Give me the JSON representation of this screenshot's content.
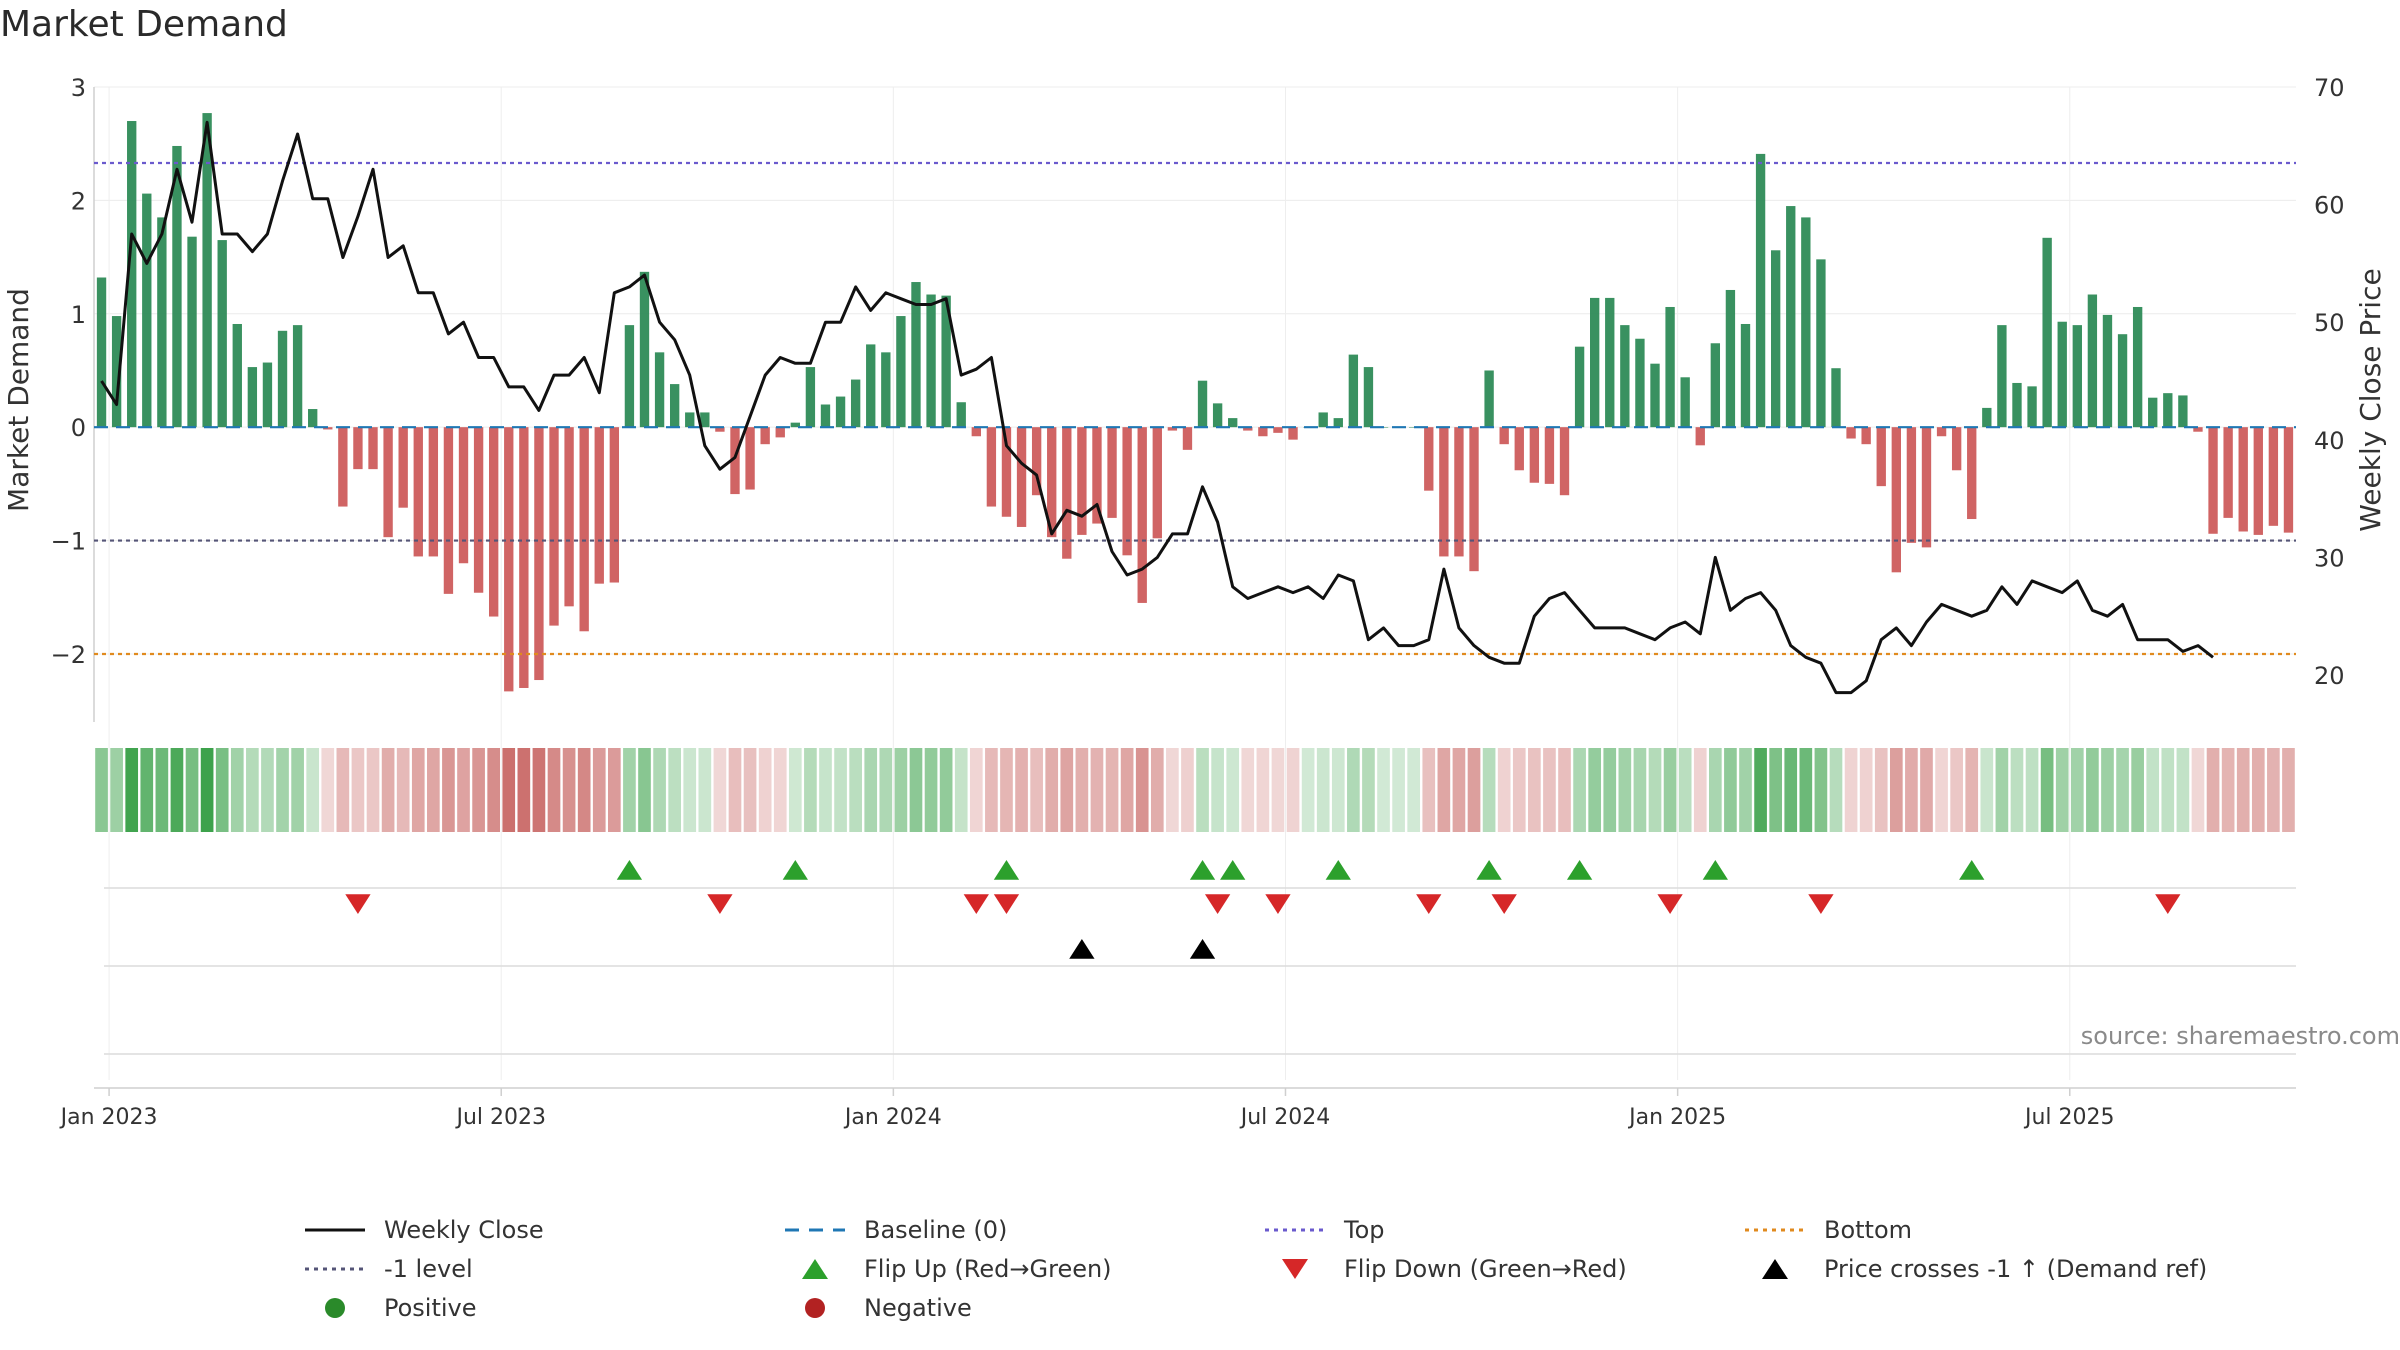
{
  "title": "Market Demand",
  "source": "source: sharemaestro.com",
  "chart_data": {
    "type": "bar+line",
    "title": "Market Demand",
    "ylabel_left": "Market Demand",
    "ylabel_right": "Weekly Close Price",
    "left_ylim": [
      -2.6,
      3.0
    ],
    "right_ylim": [
      16,
      70
    ],
    "left_ticks": [
      3,
      2,
      1,
      0,
      -1,
      -2
    ],
    "left_tick_labels": [
      "3",
      "2",
      "1",
      "0",
      "−1",
      "−2"
    ],
    "right_ticks": [
      70,
      60,
      50,
      40,
      30,
      20
    ],
    "right_tick_labels": [
      "70",
      "60",
      "50",
      "40",
      "30",
      "20"
    ],
    "x_tick_labels": [
      "Jan 2023",
      "Jul 2023",
      "Jan 2024",
      "Jul 2024",
      "Jan 2025",
      "Jul 2025"
    ],
    "x_tick_weeks": [
      1,
      27,
      53,
      79,
      105,
      131
    ],
    "reference_lines": [
      {
        "name": "Top",
        "value": 2.33,
        "color": "#6a5acd",
        "style": "dotted"
      },
      {
        "name": "-1 level",
        "value": -1.0,
        "color": "#555577",
        "style": "dotted"
      },
      {
        "name": "Bottom",
        "value": -2.0,
        "color": "#e08a1e",
        "style": "dotted"
      },
      {
        "name": "Baseline (0)",
        "value": 0,
        "color": "#1f77b4",
        "style": "dashed"
      }
    ],
    "demand": [
      1.32,
      0.98,
      2.7,
      2.06,
      1.85,
      2.48,
      1.68,
      2.77,
      1.65,
      0.91,
      0.53,
      0.57,
      0.85,
      0.9,
      0.16,
      -0.02,
      -0.7,
      -0.37,
      -0.37,
      -0.97,
      -0.71,
      -1.14,
      -1.14,
      -1.47,
      -1.2,
      -1.46,
      -1.67,
      -2.33,
      -2.3,
      -2.23,
      -1.75,
      -1.58,
      -1.8,
      -1.38,
      -1.37,
      0.9,
      1.37,
      0.66,
      0.38,
      0.13,
      0.13,
      -0.04,
      -0.59,
      -0.55,
      -0.15,
      -0.09,
      0.04,
      0.53,
      0.2,
      0.27,
      0.42,
      0.73,
      0.66,
      0.98,
      1.28,
      1.17,
      1.16,
      0.22,
      -0.08,
      -0.7,
      -0.79,
      -0.88,
      -0.6,
      -0.97,
      -1.16,
      -0.95,
      -0.85,
      -0.8,
      -1.13,
      -1.55,
      -0.98,
      -0.03,
      -0.2,
      0.41,
      0.21,
      0.08,
      -0.03,
      -0.08,
      -0.05,
      -0.11,
      0.0,
      0.13,
      0.08,
      0.64,
      0.53,
      0.0,
      0.0,
      0.0,
      -0.56,
      -1.14,
      -1.14,
      -1.27,
      0.5,
      -0.15,
      -0.38,
      -0.49,
      -0.5,
      -0.6,
      0.71,
      1.14,
      1.14,
      0.9,
      0.78,
      0.56,
      1.06,
      0.44,
      -0.16,
      0.74,
      1.21,
      0.91,
      2.41,
      1.56,
      1.95,
      1.85,
      1.48,
      0.52,
      -0.1,
      -0.15,
      -0.52,
      -1.28,
      -1.02,
      -1.06,
      -0.08,
      -0.38,
      -0.81,
      0.17,
      0.9,
      0.39,
      0.36,
      1.67,
      0.93,
      0.9,
      1.17,
      0.99,
      0.82,
      1.06,
      0.26,
      0.3,
      0.28,
      -0.04,
      -0.94,
      -0.8,
      -0.92,
      -0.95,
      -0.87,
      -0.93
    ],
    "price": [
      45,
      43,
      57.5,
      55,
      57.5,
      63,
      58.5,
      67,
      57.5,
      57.5,
      56,
      57.5,
      62,
      66,
      60.5,
      60.5,
      55.5,
      59,
      63,
      55.5,
      56.5,
      52.5,
      52.5,
      49,
      50,
      47,
      47,
      44.5,
      44.5,
      42.5,
      45.5,
      45.5,
      47,
      44,
      52.5,
      53,
      54,
      50,
      48.5,
      45.5,
      39.5,
      37.5,
      38.5,
      42,
      45.5,
      47,
      46.5,
      46.5,
      50,
      50,
      53,
      51,
      52.5,
      52,
      51.5,
      51.5,
      52,
      45.5,
      46,
      47,
      39.5,
      38,
      37,
      32,
      34,
      33.5,
      34.5,
      30.5,
      28.5,
      29,
      30,
      32,
      32,
      36,
      33,
      27.5,
      26.5,
      27,
      27.5,
      27,
      27.5,
      26.5,
      28.5,
      28,
      23,
      24,
      22.5,
      22.5,
      23,
      29,
      24,
      22.5,
      21.5,
      21,
      21,
      25,
      26.5,
      27,
      25.5,
      24,
      24,
      24,
      23.5,
      23,
      24,
      24.5,
      23.5,
      30,
      25.5,
      26.5,
      27,
      25.5,
      22.5,
      21.5,
      21,
      18.5,
      18.5,
      19.5,
      23,
      24,
      22.5,
      24.5,
      26,
      25.5,
      25,
      25.5,
      27.5,
      26,
      28,
      27.5,
      27,
      28,
      25.5,
      25,
      26,
      23,
      23,
      23,
      22,
      22.5,
      21.5
    ],
    "flip_up_weeks": [
      35,
      46,
      60,
      73,
      75,
      82,
      92,
      98,
      107,
      124
    ],
    "flip_down_weeks": [
      17,
      41,
      58,
      60,
      74,
      78,
      88,
      93,
      104,
      114,
      137
    ],
    "price_cross_weeks": [
      65,
      73
    ]
  },
  "legend": [
    {
      "label": "Weekly Close",
      "symbol": "line",
      "color": "#111111"
    },
    {
      "label": "Baseline (0)",
      "symbol": "dashed",
      "color": "#1f77b4"
    },
    {
      "label": "Top",
      "symbol": "dotted",
      "color": "#6a5acd"
    },
    {
      "label": "Bottom",
      "symbol": "dotted",
      "color": "#e08a1e"
    },
    {
      "label": "-1 level",
      "symbol": "dotted",
      "color": "#555577"
    },
    {
      "label": "Flip Up (Red→Green)",
      "symbol": "triangle-up",
      "color": "#2ca02c"
    },
    {
      "label": "Flip Down (Green→Red)",
      "symbol": "triangle-down",
      "color": "#d62728"
    },
    {
      "label": "Price crosses -1 ↑ (Demand ref)",
      "symbol": "triangle-up",
      "color": "#000000"
    },
    {
      "label": "Positive",
      "symbol": "circle",
      "color": "#2a8a2a"
    },
    {
      "label": "Negative",
      "symbol": "circle",
      "color": "#b22222"
    }
  ],
  "colors": {
    "positive_bar": "#2e8b57",
    "negative_bar": "#cd5c5c",
    "price_line": "#111111",
    "grid": "#e6e6e6"
  }
}
